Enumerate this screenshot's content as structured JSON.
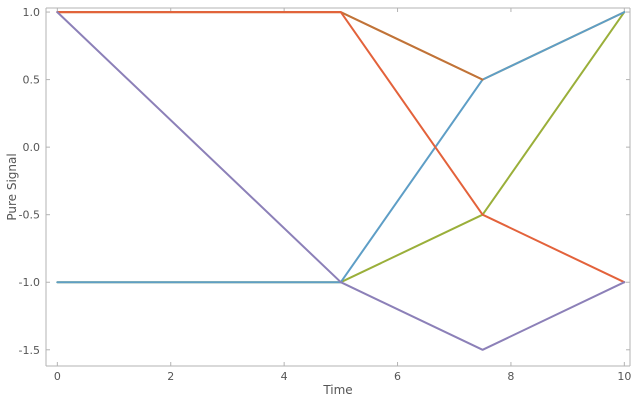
{
  "chart_data": {
    "type": "line",
    "title": "",
    "xlabel": "Time",
    "ylabel": "Pure Signal",
    "xlim": [
      -0.2,
      10.1
    ],
    "ylim": [
      -1.62,
      1.03
    ],
    "xticks": [
      0,
      2,
      4,
      6,
      8,
      10
    ],
    "yticks": [
      1.0,
      0.5,
      0.0,
      -0.5,
      -1.0,
      -1.5
    ],
    "xtick_labels": [
      "0",
      "2",
      "4",
      "6",
      "8",
      "10"
    ],
    "ytick_labels": [
      "1.0",
      "0.5",
      "0.0",
      "-0.5",
      "-1.0",
      "-1.5"
    ],
    "grid": false,
    "legend": "none",
    "series": [
      {
        "color": "#e0a94a",
        "x": [
          0,
          5,
          7.5,
          10
        ],
        "y": [
          1,
          1,
          0.5,
          1
        ]
      },
      {
        "color": "#9aaf3a",
        "x": [
          0,
          5,
          7.5,
          10
        ],
        "y": [
          -1,
          -1,
          -0.5,
          1
        ]
      },
      {
        "color": "#5e9ec6",
        "x": [
          0,
          5,
          7.5,
          10
        ],
        "y": [
          -1,
          -1,
          0.5,
          1
        ]
      },
      {
        "color": "#c0723a",
        "x": [
          0,
          5,
          7.5
        ],
        "y": [
          1,
          1,
          0.5
        ]
      },
      {
        "color": "#e3623b",
        "x": [
          0,
          5,
          7.5,
          10
        ],
        "y": [
          1,
          1,
          -0.5,
          -1
        ]
      },
      {
        "color": "#8c80b8",
        "x": [
          0,
          5,
          7.5,
          10
        ],
        "y": [
          1,
          -1,
          -1.5,
          -1
        ]
      }
    ]
  }
}
